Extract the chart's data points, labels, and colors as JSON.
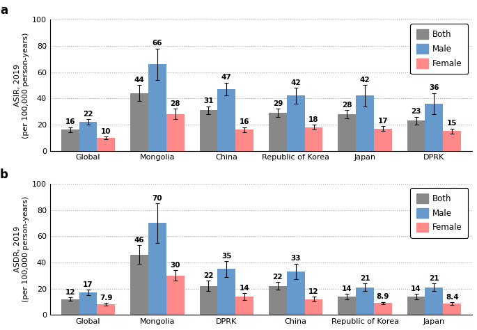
{
  "panel_a": {
    "title": "a",
    "ylabel": "ASIR, 2019\n(per 100,000 person-years)",
    "ylim": [
      0,
      100
    ],
    "yticks": [
      0,
      20,
      40,
      60,
      80,
      100
    ],
    "categories": [
      "Global",
      "Mongolia",
      "China",
      "Republic of Korea",
      "Japan",
      "DPRK"
    ],
    "both": [
      16,
      44,
      31,
      29,
      28,
      23
    ],
    "male": [
      22,
      66,
      47,
      42,
      42,
      36
    ],
    "female": [
      10,
      28,
      16,
      18,
      17,
      15
    ],
    "both_err": [
      2,
      6,
      3,
      3,
      3,
      3
    ],
    "male_err": [
      2,
      12,
      5,
      6,
      8,
      8
    ],
    "female_err": [
      1,
      4,
      2,
      2,
      2,
      2
    ]
  },
  "panel_b": {
    "title": "b",
    "ylabel": "ASDR, 2019\n(per 100,000 person-years)",
    "ylim": [
      0,
      100
    ],
    "yticks": [
      0,
      20,
      40,
      60,
      80,
      100
    ],
    "categories": [
      "Global",
      "Mongolia",
      "DPRK",
      "China",
      "Republic of Korea",
      "Japan"
    ],
    "both": [
      12,
      46,
      22,
      22,
      14,
      14
    ],
    "male": [
      17,
      70,
      35,
      33,
      21,
      21
    ],
    "female": [
      7.9,
      30,
      14,
      12,
      8.9,
      8.4
    ],
    "both_err": [
      1.5,
      7,
      4,
      3,
      2,
      2
    ],
    "male_err": [
      2,
      15,
      6,
      6,
      3,
      3
    ],
    "female_err": [
      1,
      4,
      2.5,
      2,
      1,
      1
    ]
  },
  "bar_colors": {
    "both": "#888888",
    "male": "#6699CC",
    "female": "#FF8888"
  },
  "bar_width": 0.26,
  "label_fontsize": 7.5,
  "tick_fontsize": 8,
  "ylabel_fontsize": 8,
  "title_fontsize": 12,
  "legend_fontsize": 8.5
}
